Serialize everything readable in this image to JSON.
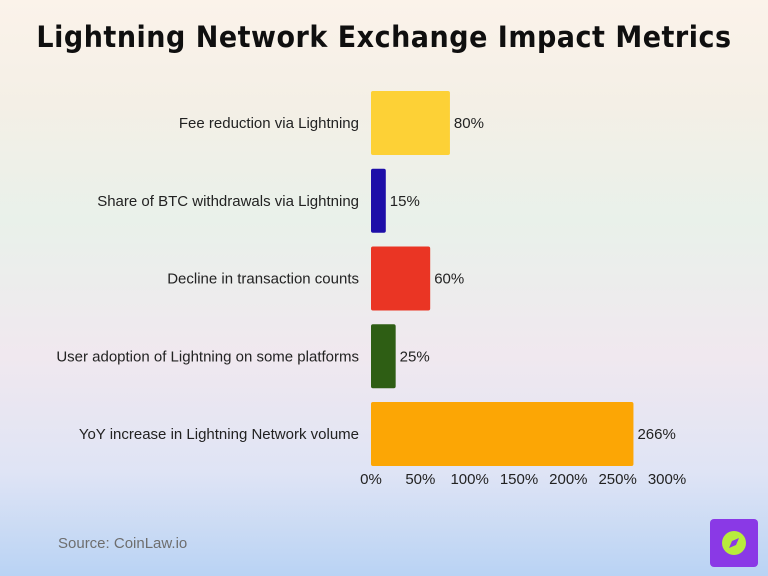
{
  "chart_data": {
    "type": "bar",
    "orientation": "horizontal",
    "title": "Lightning Network Exchange Impact Metrics",
    "categories": [
      "Fee reduction via Lightning",
      "Share of BTC withdrawals via Lightning",
      "Decline in transaction counts",
      "User adoption of Lightning on some platforms",
      "YoY increase in Lightning Network volume"
    ],
    "values": [
      80,
      15,
      60,
      25,
      266
    ],
    "value_labels": [
      "80%",
      "15%",
      "60%",
      "25%",
      "266%"
    ],
    "colors": [
      "#fdd136",
      "#1d0ea8",
      "#ea3524",
      "#2e5e14",
      "#fca605"
    ],
    "xlim": [
      0,
      300
    ],
    "xticks": [
      0,
      50,
      100,
      150,
      200,
      250,
      300
    ],
    "xtick_labels": [
      "0%",
      "50%",
      "100%",
      "150%",
      "200%",
      "250%",
      "300%"
    ],
    "grid": false,
    "legend": "none"
  },
  "source": "Source: CoinLaw.io",
  "logo": {
    "icon": "compass-icon",
    "background": "#8a39e6",
    "accent": "#b8ec3c"
  }
}
